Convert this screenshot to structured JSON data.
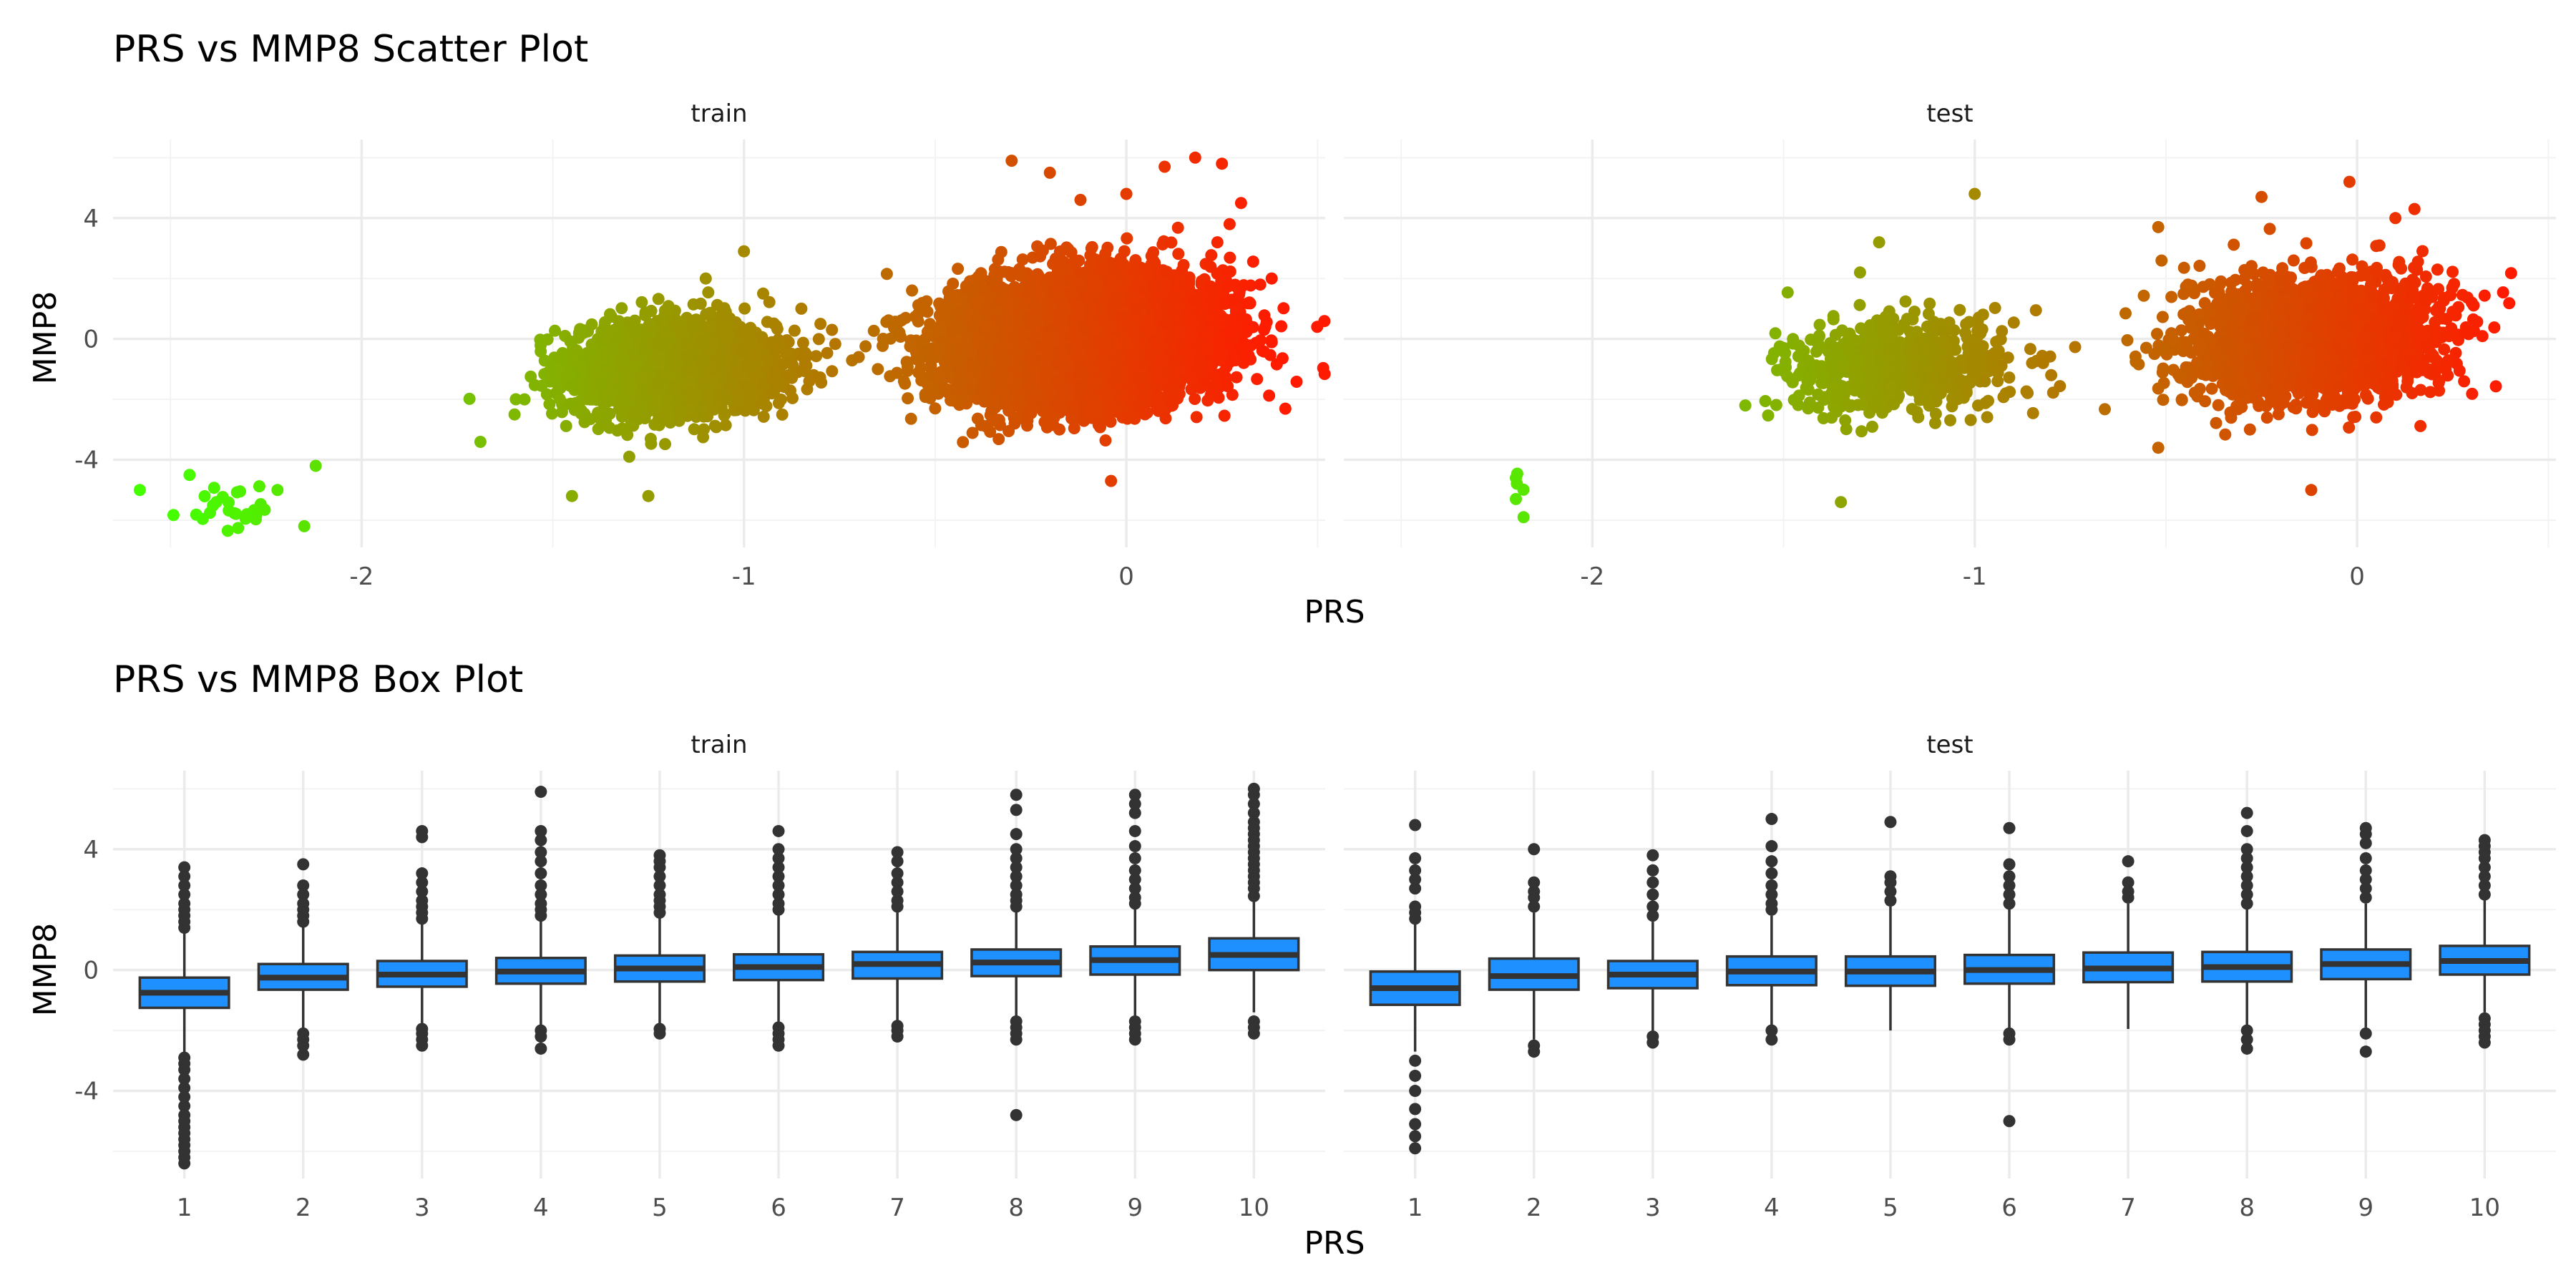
{
  "chart_data": [
    {
      "type": "scatter",
      "title": "PRS vs MMP8 Scatter Plot",
      "xlabel": "PRS",
      "ylabel": "MMP8",
      "xlim": [
        -2.65,
        0.52
      ],
      "ylim": [
        -6.9,
        6.6
      ],
      "x_ticks": [
        -2,
        -1,
        0
      ],
      "y_ticks": [
        -4,
        0,
        4
      ],
      "grid": true,
      "legend": "none",
      "color_scale": {
        "low": "#44ff00",
        "high": "#ff1a00",
        "mapped_to": "PRS",
        "range": [
          -2.5,
          0.4
        ]
      },
      "panels": [
        {
          "label": "train",
          "clusters": [
            {
              "x_center": -2.35,
              "x_sd": 0.08,
              "y_center": -5.5,
              "y_sd": 0.4,
              "n": 22
            },
            {
              "x_center": -1.18,
              "x_sd": 0.13,
              "y_center": -1.0,
              "y_sd": 0.75,
              "n": 2500
            },
            {
              "x_center": -0.12,
              "x_sd": 0.17,
              "y_center": 0.0,
              "y_sd": 1.0,
              "n": 7000
            }
          ],
          "points": [
            [
              -2.12,
              -4.2
            ],
            [
              -2.58,
              -5.0
            ],
            [
              -2.45,
              -4.5
            ],
            [
              -2.38,
              -5.4
            ],
            [
              -2.3,
              -5.8
            ],
            [
              -2.22,
              -5.0
            ],
            [
              -2.15,
              -6.2
            ],
            [
              -2.35,
              -6.35
            ],
            [
              -1.25,
              -5.2
            ],
            [
              -1.45,
              -5.2
            ],
            [
              -1.0,
              2.9
            ],
            [
              -1.1,
              2.0
            ],
            [
              -0.95,
              1.5
            ],
            [
              -0.85,
              1.0
            ],
            [
              -0.8,
              0.5
            ],
            [
              -1.6,
              -2.5
            ],
            [
              -1.3,
              -3.9
            ],
            [
              -0.3,
              5.9
            ],
            [
              -0.2,
              5.5
            ],
            [
              0.1,
              5.7
            ],
            [
              0.18,
              6.0
            ],
            [
              0.25,
              5.8
            ],
            [
              0.0,
              4.8
            ],
            [
              -0.12,
              4.6
            ],
            [
              0.3,
              4.5
            ],
            [
              0.27,
              3.8
            ],
            [
              0.35,
              1.8
            ],
            [
              0.38,
              2.0
            ],
            [
              0.32,
              0.4
            ],
            [
              0.36,
              0.3
            ],
            [
              -0.04,
              -4.7
            ],
            [
              -0.35,
              -2.7
            ],
            [
              -0.5,
              -2.3
            ],
            [
              -0.65,
              -1.0
            ],
            [
              -0.7,
              -0.6
            ]
          ]
        },
        {
          "label": "test",
          "clusters": [
            {
              "x_center": -2.19,
              "x_sd": 0.01,
              "y_center": -5.3,
              "y_sd": 0.55,
              "n": 3
            },
            {
              "x_center": -1.2,
              "x_sd": 0.14,
              "y_center": -0.9,
              "y_sd": 0.75,
              "n": 700
            },
            {
              "x_center": -0.12,
              "x_sd": 0.16,
              "y_center": 0.0,
              "y_sd": 0.95,
              "n": 2500
            }
          ],
          "points": [
            [
              -2.2,
              -4.6
            ],
            [
              -2.2,
              -5.3
            ],
            [
              -2.18,
              -5.9
            ],
            [
              -1.0,
              4.8
            ],
            [
              -1.25,
              3.2
            ],
            [
              -1.3,
              2.2
            ],
            [
              -1.35,
              -5.4
            ],
            [
              -1.6,
              -2.2
            ],
            [
              -1.5,
              -0.3
            ],
            [
              -0.12,
              -5.0
            ],
            [
              -0.52,
              -3.6
            ],
            [
              0.3,
              1.2
            ],
            [
              0.25,
              0.9
            ],
            [
              -0.02,
              5.2
            ],
            [
              -0.25,
              4.7
            ],
            [
              -0.52,
              3.7
            ],
            [
              0.1,
              4.0
            ],
            [
              0.15,
              4.3
            ],
            [
              -0.85,
              -0.8
            ],
            [
              -0.8,
              -1.2
            ],
            [
              0.05,
              -2.6
            ]
          ]
        }
      ]
    },
    {
      "type": "box",
      "title": "PRS vs MMP8 Box Plot",
      "xlabel": "PRS",
      "ylabel": "MMP8",
      "categories": [
        "1",
        "2",
        "3",
        "4",
        "5",
        "6",
        "7",
        "8",
        "9",
        "10"
      ],
      "ylim": [
        -6.9,
        6.6
      ],
      "y_ticks": [
        -4,
        0,
        4
      ],
      "grid": true,
      "box_fill": "#1e90ff",
      "box_stroke": "#333333",
      "legend": "none",
      "panels": [
        {
          "label": "train",
          "boxes": [
            {
              "q1": -1.25,
              "median": -0.75,
              "q3": -0.25,
              "whisker_low": -2.75,
              "whisker_high": 1.3,
              "outliers_high": [
                1.4,
                1.6,
                1.8,
                2.0,
                2.2,
                2.5,
                2.8,
                3.1,
                3.4
              ],
              "outliers_low": [
                -2.9,
                -3.1,
                -3.3,
                -3.6,
                -3.9,
                -4.2,
                -4.5,
                -4.8,
                -5.0,
                -5.2,
                -5.4,
                -5.6,
                -5.8,
                -6.0,
                -6.2,
                -6.4
              ]
            },
            {
              "q1": -0.65,
              "median": -0.25,
              "q3": 0.2,
              "whisker_low": -1.95,
              "whisker_high": 1.45,
              "outliers_high": [
                1.6,
                1.8,
                2.0,
                2.2,
                2.5,
                2.8,
                3.5
              ],
              "outliers_low": [
                -2.1,
                -2.3,
                -2.5,
                -2.8
              ]
            },
            {
              "q1": -0.55,
              "median": -0.15,
              "q3": 0.3,
              "whisker_low": -1.8,
              "whisker_high": 1.55,
              "outliers_high": [
                1.7,
                1.9,
                2.1,
                2.3,
                2.6,
                2.9,
                3.2,
                4.4,
                4.6
              ],
              "outliers_low": [
                -1.95,
                -2.1,
                -2.3,
                -2.5
              ]
            },
            {
              "q1": -0.45,
              "median": -0.05,
              "q3": 0.4,
              "whisker_low": -1.9,
              "whisker_high": 1.65,
              "outliers_high": [
                1.8,
                2.0,
                2.2,
                2.5,
                2.8,
                3.2,
                3.6,
                3.9,
                4.3,
                4.6,
                5.9
              ],
              "outliers_low": [
                -2.0,
                -2.2,
                -2.6
              ]
            },
            {
              "q1": -0.38,
              "median": 0.05,
              "q3": 0.48,
              "whisker_low": -1.8,
              "whisker_high": 1.75,
              "outliers_high": [
                1.9,
                2.1,
                2.3,
                2.5,
                2.8,
                3.1,
                3.4,
                3.6,
                3.8
              ],
              "outliers_low": [
                -1.95,
                -2.1
              ]
            },
            {
              "q1": -0.33,
              "median": 0.1,
              "q3": 0.52,
              "whisker_low": -1.75,
              "whisker_high": 1.85,
              "outliers_high": [
                2.0,
                2.2,
                2.5,
                2.8,
                3.1,
                3.4,
                3.7,
                4.0,
                4.6
              ],
              "outliers_low": [
                -1.9,
                -2.1,
                -2.3,
                -2.5
              ]
            },
            {
              "q1": -0.28,
              "median": 0.2,
              "q3": 0.6,
              "whisker_low": -1.7,
              "whisker_high": 1.9,
              "outliers_high": [
                2.1,
                2.3,
                2.6,
                2.9,
                3.2,
                3.6,
                3.9
              ],
              "outliers_low": [
                -1.85,
                -2.0,
                -2.2
              ]
            },
            {
              "q1": -0.2,
              "median": 0.25,
              "q3": 0.68,
              "whisker_low": -1.55,
              "whisker_high": 2.0,
              "outliers_high": [
                2.1,
                2.3,
                2.5,
                2.8,
                3.1,
                3.4,
                3.7,
                4.0,
                4.5,
                5.3,
                5.8
              ],
              "outliers_low": [
                -1.7,
                -1.9,
                -2.1,
                -2.3,
                -4.8
              ]
            },
            {
              "q1": -0.15,
              "median": 0.33,
              "q3": 0.78,
              "whisker_low": -1.5,
              "whisker_high": 2.1,
              "outliers_high": [
                2.2,
                2.4,
                2.7,
                3.0,
                3.3,
                3.7,
                4.1,
                4.6,
                5.2,
                5.5,
                5.8
              ],
              "outliers_low": [
                -1.7,
                -1.9,
                -2.1,
                -2.3
              ]
            },
            {
              "q1": 0.0,
              "median": 0.5,
              "q3": 1.05,
              "whisker_low": -1.4,
              "whisker_high": 2.3,
              "outliers_high": [
                2.45,
                2.7,
                2.9,
                3.1,
                3.3,
                3.5,
                3.7,
                3.9,
                4.1,
                4.3,
                4.5,
                4.7,
                4.9,
                5.2,
                5.5,
                5.8,
                6.0
              ],
              "outliers_low": [
                -1.7,
                -1.9,
                -2.1
              ]
            }
          ]
        },
        {
          "label": "test",
          "boxes": [
            {
              "q1": -1.15,
              "median": -0.6,
              "q3": -0.05,
              "whisker_low": -2.7,
              "whisker_high": 1.55,
              "outliers_high": [
                1.7,
                1.9,
                2.1,
                2.7,
                3.0,
                3.3,
                3.7,
                4.8
              ],
              "outliers_low": [
                -3.0,
                -3.5,
                -4.0,
                -4.6,
                -5.1,
                -5.5,
                -5.9
              ]
            },
            {
              "q1": -0.65,
              "median": -0.2,
              "q3": 0.38,
              "whisker_low": -2.3,
              "whisker_high": 1.9,
              "outliers_high": [
                2.1,
                2.4,
                2.6,
                2.9,
                4.0
              ],
              "outliers_low": [
                -2.5,
                -2.7
              ]
            },
            {
              "q1": -0.6,
              "median": -0.15,
              "q3": 0.3,
              "whisker_low": -2.0,
              "whisker_high": 1.6,
              "outliers_high": [
                1.8,
                2.1,
                2.5,
                2.9,
                3.3,
                3.8
              ],
              "outliers_low": [
                -2.2,
                -2.4
              ]
            },
            {
              "q1": -0.5,
              "median": -0.05,
              "q3": 0.45,
              "whisker_low": -1.9,
              "whisker_high": 1.8,
              "outliers_high": [
                2.0,
                2.2,
                2.5,
                2.8,
                3.2,
                3.6,
                4.1,
                5.0
              ],
              "outliers_low": [
                -2.0,
                -2.3
              ]
            },
            {
              "q1": -0.52,
              "median": -0.05,
              "q3": 0.45,
              "whisker_low": -2.0,
              "whisker_high": 2.1,
              "outliers_high": [
                2.3,
                2.6,
                2.9,
                3.1,
                4.9
              ],
              "outliers_low": []
            },
            {
              "q1": -0.45,
              "median": 0.0,
              "q3": 0.5,
              "whisker_low": -2.0,
              "whisker_high": 2.05,
              "outliers_high": [
                2.2,
                2.5,
                2.8,
                3.1,
                3.5,
                4.7
              ],
              "outliers_low": [
                -2.1,
                -2.3,
                -5.0
              ]
            },
            {
              "q1": -0.4,
              "median": 0.05,
              "q3": 0.58,
              "whisker_low": -1.95,
              "whisker_high": 2.2,
              "outliers_high": [
                2.4,
                2.6,
                2.9,
                3.6
              ],
              "outliers_low": []
            },
            {
              "q1": -0.38,
              "median": 0.1,
              "q3": 0.6,
              "whisker_low": -1.95,
              "whisker_high": 2.1,
              "outliers_high": [
                2.2,
                2.5,
                2.8,
                3.1,
                3.4,
                3.7,
                4.0,
                4.6,
                5.2
              ],
              "outliers_low": [
                -2.0,
                -2.3,
                -2.6
              ]
            },
            {
              "q1": -0.3,
              "median": 0.2,
              "q3": 0.68,
              "whisker_low": -1.9,
              "whisker_high": 2.2,
              "outliers_high": [
                2.4,
                2.7,
                3.0,
                3.3,
                3.7,
                4.2,
                4.5,
                4.7
              ],
              "outliers_low": [
                -2.1,
                -2.7
              ]
            },
            {
              "q1": -0.15,
              "median": 0.3,
              "q3": 0.8,
              "whisker_low": -1.4,
              "whisker_high": 2.3,
              "outliers_high": [
                2.5,
                2.8,
                3.1,
                3.4,
                3.7,
                3.9,
                4.1,
                4.3
              ],
              "outliers_low": [
                -1.6,
                -1.8,
                -2.0,
                -2.2,
                -2.4
              ]
            }
          ]
        }
      ]
    }
  ]
}
